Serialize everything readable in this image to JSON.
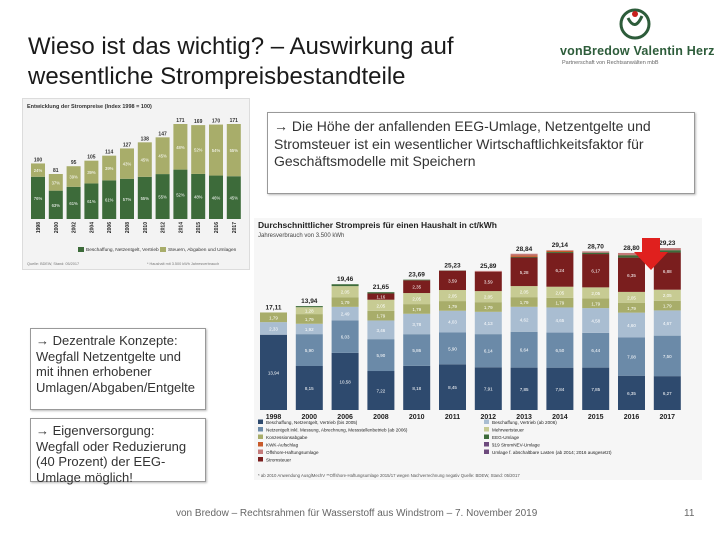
{
  "slide": {
    "title_line1": "Wieso ist das wichtig? – Auswirkung auf",
    "title_line2": "wesentliche Strompreisbestandteile",
    "logo_name": "vonBredow Valentin Herz",
    "logo_tagline": "Partnerschaft von Rechtsanwälten mbB",
    "box1": "→ Die Höhe der anfallenden EEG-Umlage, Netzentgelte und Stromsteuer ist ein wesentlicher Wirtschaftlichkeitsfaktor für Geschäftsmodelle mit Speichern",
    "box2": "→ Dezentrale Konzepte: Wegfall Netzentgelte und mit ihnen erhobener Umlagen/Abgaben/Entgelte",
    "box3": "→ Eigenversorgung: Wegfall oder Reduzierung (40 Prozent) der EEG-Umlage möglich!",
    "footer": "von Bredow – Rechtsrahmen für Wasserstoff aus Windstrom – 7. November 2019",
    "page": "11"
  },
  "colors": {
    "dark_red": "#7a1e1e",
    "olive": "#a8ad6a",
    "olive_light": "#c7cb93",
    "navy": "#2e4a6e",
    "mid_blue": "#6b8aa8",
    "light_blue": "#a9bdd1",
    "green_dark": "#3d6b3a",
    "rust": "#c85a2a",
    "pink": "#c47a7a",
    "purple": "#6d4a7d",
    "arrow_red": "#e0201e"
  },
  "chart_data": [
    {
      "type": "bar",
      "title": "Entwicklung der Strompreise (Index 1998 = 100)",
      "categories": [
        "1998",
        "2000",
        "2002",
        "2004",
        "2006",
        "2008",
        "2010",
        "2012",
        "2014",
        "2015",
        "2016",
        "2017"
      ],
      "totals": [
        100,
        81,
        95,
        105,
        114,
        127,
        138,
        147,
        171,
        169,
        170,
        171
      ],
      "total_labels": [
        "100",
        "81",
        "95",
        "105",
        "114",
        "127",
        "138",
        "147",
        "171",
        "169",
        "170",
        "171"
      ],
      "series": [
        {
          "name": "Beschaffung, Netzentgelt, Vertrieb",
          "values": [
            76,
            63,
            61,
            61,
            61,
            57,
            55,
            55,
            52,
            48,
            46,
            45
          ],
          "labels": [
            "76%",
            "63%",
            "61%",
            "61%",
            "61%",
            "57%",
            "55%",
            "55%",
            "52%",
            "48%",
            "46%",
            "45%"
          ]
        },
        {
          "name": "Steuern, Abgaben und Umlagen",
          "values": [
            24,
            37,
            39,
            39,
            39,
            43,
            45,
            45,
            48,
            52,
            54,
            55
          ],
          "labels": [
            "24%",
            "37%",
            "39%",
            "39%",
            "39%",
            "43%",
            "45%",
            "45%",
            "48%",
            "52%",
            "54%",
            "55%"
          ]
        }
      ],
      "legend": [
        "Beschaffung, Netzentgelt, Vertrieb",
        "Steuern, Abgaben und Umlagen"
      ],
      "source": "Quelle: BDEW, Stand: 05/2017",
      "note": "* Haushalt mit 3.500 kWh Jahresverbrauch"
    },
    {
      "type": "bar",
      "title": "Durchschnittlicher Strompreis für einen Haushalt in ct/kWh",
      "subtitle": "Jahresverbrauch von 3.500 kWh",
      "categories": [
        "1998",
        "2000",
        "2006",
        "2008",
        "2010",
        "2011",
        "2012",
        "2013",
        "2014",
        "2015",
        "2016",
        "2017"
      ],
      "totals": [
        17.11,
        13.94,
        19.46,
        21.65,
        23.69,
        25.23,
        25.89,
        28.84,
        29.14,
        28.7,
        28.8,
        29.23
      ],
      "total_labels": [
        "17,11",
        "13,94",
        "19,46",
        "21,65",
        "23,69",
        "25,23",
        "25,89",
        "28,84",
        "29,14",
        "28,70",
        "28,80",
        "29,23"
      ],
      "series": [
        {
          "name": "Beschaffung, Netzentgelt, Vertrieb",
          "values": [
            13.94,
            8.15,
            10.58,
            7.22,
            8.18,
            8.45,
            7.91,
            7.85,
            7.84,
            7.85,
            6.35,
            6.27
          ],
          "labels": [
            "13,94",
            "8,15",
            "10,58",
            "7,22",
            "8,18",
            "8,45",
            "7,91",
            "7,85",
            "7,84",
            "7,85",
            "6,35",
            "6,27"
          ]
        },
        {
          "name": "Netzentgelt inkl. Messung, Abrechnung, Messstellenbetrieb",
          "values": [
            0,
            5.9,
            6.03,
            5.9,
            5.86,
            5.9,
            6.14,
            6.64,
            6.5,
            6.44,
            7.08,
            7.5
          ],
          "labels": [
            "",
            "5,90",
            "6,03",
            "5,90",
            "5,86",
            "5,90",
            "6,14",
            "6,64",
            "6,50",
            "6,44",
            "7,08",
            "7,50"
          ]
        },
        {
          "name": "Mehrwertsteuer",
          "values": [
            2.33,
            1.92,
            2.49,
            3.46,
            3.78,
            4.03,
            4.13,
            4.62,
            4.65,
            4.58,
            4.6,
            4.67
          ],
          "labels": [
            "2,33",
            "1,92",
            "2,49",
            "3,46",
            "3,78",
            "4,03",
            "4,13",
            "4,62",
            "4,65",
            "4,58",
            "4,60",
            "4,67"
          ]
        },
        {
          "name": "Konzessionsabgabe",
          "values": [
            1.79,
            1.79,
            1.79,
            1.79,
            1.79,
            1.79,
            1.79,
            1.79,
            1.79,
            1.79,
            1.79,
            1.79
          ],
          "labels": [
            "1,79",
            "1,79",
            "1,79",
            "1,79",
            "1,79",
            "1,79",
            "1,79",
            "1,79",
            "1,79",
            "1,79",
            "1,79",
            "1,79"
          ]
        },
        {
          "name": "Stromsteuer",
          "values": [
            0,
            1.28,
            2.05,
            2.05,
            2.05,
            2.05,
            2.05,
            2.05,
            2.05,
            2.05,
            2.05,
            2.05
          ],
          "labels": [
            "",
            "1,28",
            "2,05",
            "2,05",
            "2,05",
            "2,05",
            "2,05",
            "2,05",
            "2,05",
            "2,05",
            "2,05",
            "2,05"
          ]
        },
        {
          "name": "EEG-Umlage",
          "values": [
            0,
            0,
            0,
            1.16,
            2.35,
            3.59,
            3.59,
            5.28,
            6.24,
            6.17,
            6.35,
            6.88
          ],
          "labels": [
            "",
            "",
            "",
            "1,16",
            "2,35",
            "3,59",
            "3,59",
            "5,28",
            "6,24",
            "6,17",
            "6,35",
            "6,88"
          ]
        },
        {
          "name": "KWK-Aufschlag",
          "values": [
            0,
            0.2,
            0.35,
            0.24,
            0.13,
            0.03,
            0.002,
            0.126,
            0.178,
            0.254,
            0.445,
            0.438
          ],
          "labels": [
            "",
            "0,20",
            "0,35",
            "0,24",
            "0,13",
            "0,03",
            "0,002",
            "0,126",
            "0,178",
            "0,254",
            "0,445",
            "0,438"
          ]
        },
        {
          "name": "Offshore-Haftungsumlage",
          "values": [
            0,
            0,
            0,
            0,
            0,
            0,
            0,
            0.25,
            0.25,
            -0.051,
            0.04,
            -0.028
          ],
          "labels": [
            "",
            "",
            "",
            "",
            "",
            "",
            "",
            "0,25",
            "0,25",
            "-0,051",
            "0,040",
            "-0,028"
          ]
        },
        {
          "name": "§19 StromNEV-Umlage",
          "values": [
            0,
            0,
            0,
            0,
            0,
            0,
            0.151,
            0.329,
            0.092,
            0.237,
            0.378,
            0.388
          ],
          "labels": [
            "",
            "",
            "",
            "",
            "",
            "",
            "0,151",
            "0,329",
            "0,092",
            "0,237",
            "0,378",
            "0,388"
          ]
        },
        {
          "name": "Umlage f. abschaltbare Lasten",
          "values": [
            0,
            0,
            0,
            0,
            0,
            0,
            0,
            0,
            0.009,
            0.006,
            0,
            0.006
          ],
          "labels": [
            "",
            "",
            "",
            "",
            "",
            "",
            "",
            "",
            "0,009",
            "0,006",
            "",
            "0,006"
          ]
        }
      ],
      "legend": [
        "Beschaffung, Netzentgelt, Vertrieb (bis 2005)",
        "Netzentgelt inkl. Messung, Abrechnung, Messstellenbetrieb (ab 2006)",
        "Konzessionsabgabe",
        "KWK-Aufschlag",
        "Offshore-Haftungsumlage",
        "Stromsteuer",
        "Beschaffung, Vertrieb (ab 2006)",
        "Mehrwertsteuer",
        "EEG-Umlage",
        "§19 StromNEV-Umlage",
        "Umlage f. abschaltbare Lasten (ab 2014; 2016 ausgesetzt)"
      ],
      "note": "* ab 2010 Anwendung AusglMechV   **Offshore-Haftungsumlage 2015/17 wegen Nachverrechnung negativ   Quelle: BDEW, Stand: 05/2017"
    }
  ]
}
